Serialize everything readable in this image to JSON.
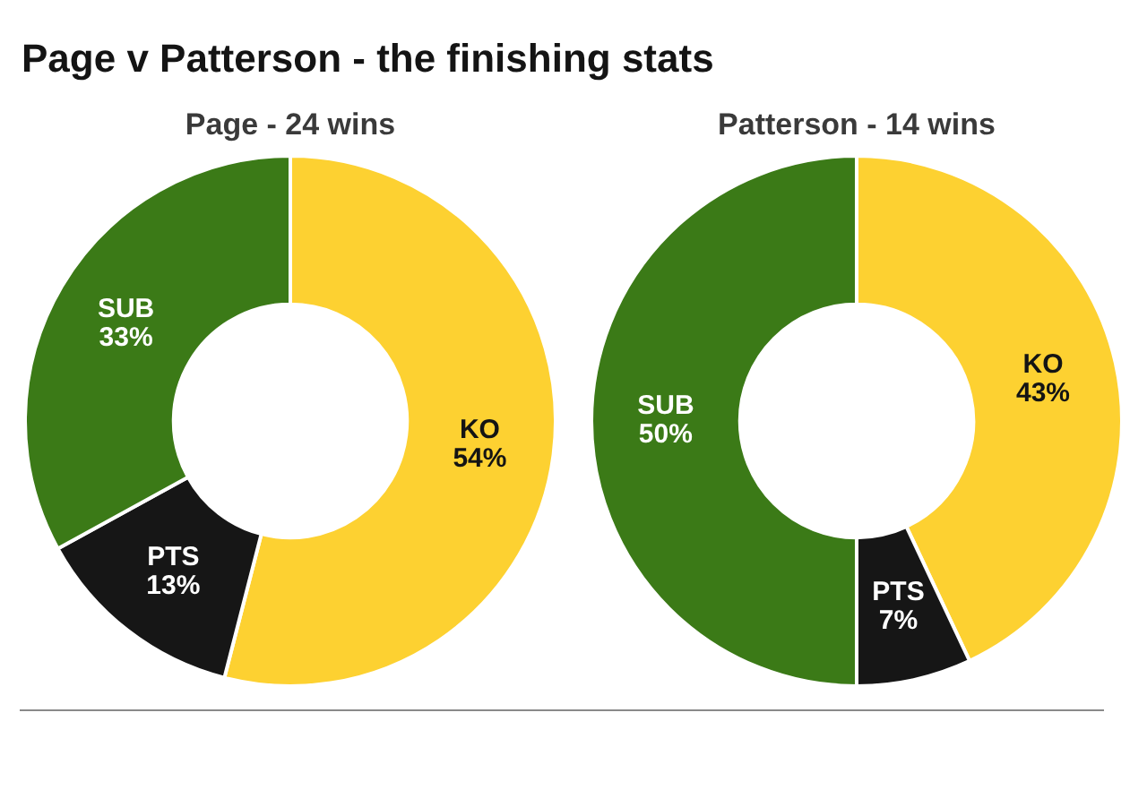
{
  "chart_data": [
    {
      "type": "donut",
      "title": "Page v Patterson - the finishing stats",
      "subtitle": "Page - 24 wins",
      "categories": [
        "KO",
        "PTS",
        "SUB"
      ],
      "values": [
        54,
        13,
        33
      ],
      "colors": [
        "#fdd131",
        "#161616",
        "#3b7a17"
      ],
      "value_labels": [
        "54%",
        "13%",
        "33%"
      ]
    },
    {
      "type": "donut",
      "subtitle": "Patterson - 14 wins",
      "categories": [
        "KO",
        "PTS",
        "SUB"
      ],
      "values": [
        43,
        7,
        50
      ],
      "colors": [
        "#fdd131",
        "#161616",
        "#3b7a17"
      ],
      "value_labels": [
        "43%",
        "7%",
        "50%"
      ]
    }
  ]
}
